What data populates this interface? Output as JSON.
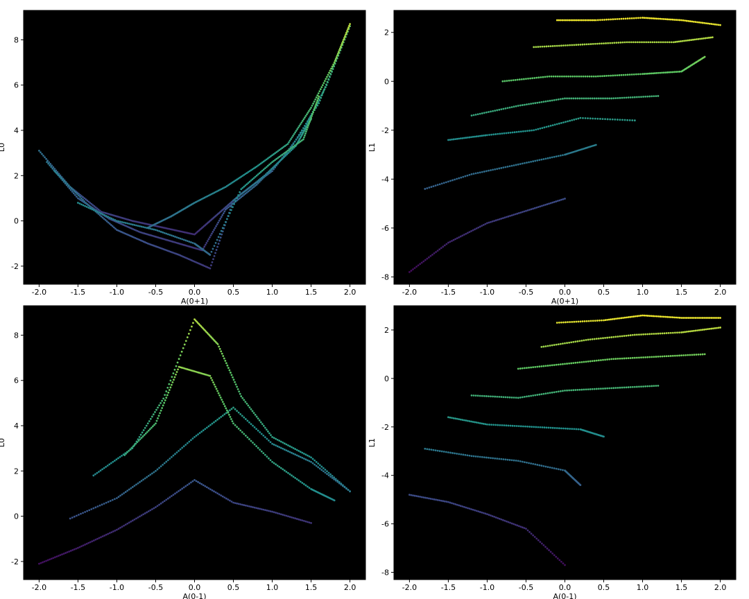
{
  "figure": {
    "background": "#ffffff",
    "plot_background": "#000000",
    "colormap": "viridis",
    "colormap_stops": [
      "#440154",
      "#3b528b",
      "#21918c",
      "#5ec962",
      "#fde725"
    ]
  },
  "chart_data": [
    {
      "type": "scatter",
      "xlabel": "A(0+1)",
      "ylabel": "L0",
      "xlim": [
        -2.2,
        2.2
      ],
      "ylim": [
        -2.8,
        9.3
      ],
      "xticks": [
        -2.0,
        -1.5,
        -1.0,
        -0.5,
        0.0,
        0.5,
        1.0,
        1.5,
        2.0
      ],
      "yticks": [
        -2,
        0,
        2,
        4,
        6,
        8
      ],
      "grid": false,
      "description_of_shape": "many overlapping curves forming a V/parabola with minimum near x=0",
      "series": [
        {
          "values_xy": [
            [
              -2.0,
              3.1
            ],
            [
              -1.6,
              1.5
            ],
            [
              -1.2,
              0.4
            ],
            [
              -0.8,
              0.0
            ],
            [
              -0.4,
              -0.3
            ],
            [
              0.0,
              -0.6
            ],
            [
              0.3,
              0.3
            ],
            [
              0.6,
              1.2
            ],
            [
              1.0,
              2.2
            ],
            [
              1.4,
              4.0
            ],
            [
              1.7,
              6.0
            ],
            [
              2.0,
              8.6
            ]
          ]
        },
        {
          "values_xy": [
            [
              -1.9,
              2.6
            ],
            [
              -1.5,
              1.0
            ],
            [
              -1.1,
              0.1
            ],
            [
              -0.7,
              -0.5
            ],
            [
              -0.3,
              -0.9
            ],
            [
              0.1,
              -1.3
            ],
            [
              0.4,
              0.5
            ],
            [
              0.8,
              1.6
            ],
            [
              1.2,
              3.0
            ],
            [
              1.6,
              5.2
            ],
            [
              1.9,
              7.8
            ]
          ]
        },
        {
          "values_xy": [
            [
              -1.8,
              2.2
            ],
            [
              -1.4,
              0.8
            ],
            [
              -1.0,
              -0.4
            ],
            [
              -0.6,
              -1.0
            ],
            [
              -0.2,
              -1.5
            ],
            [
              0.2,
              -2.1
            ],
            [
              0.5,
              0.9
            ],
            [
              0.9,
              2.0
            ],
            [
              1.3,
              3.3
            ],
            [
              1.5,
              4.5
            ]
          ]
        },
        {
          "values_xy": [
            [
              -0.6,
              -0.3
            ],
            [
              -0.3,
              0.2
            ],
            [
              0.0,
              0.8
            ],
            [
              0.4,
              1.5
            ],
            [
              0.8,
              2.4
            ],
            [
              1.2,
              3.4
            ],
            [
              1.5,
              5.0
            ],
            [
              1.8,
              7.0
            ],
            [
              2.0,
              8.7
            ]
          ]
        },
        {
          "values_xy": [
            [
              -1.5,
              0.8
            ],
            [
              -1.0,
              0.0
            ],
            [
              -0.5,
              -0.4
            ],
            [
              0.0,
              -1.0
            ],
            [
              0.2,
              -1.5
            ],
            [
              0.6,
              1.4
            ],
            [
              1.0,
              2.6
            ],
            [
              1.4,
              3.6
            ],
            [
              1.6,
              5.5
            ]
          ]
        }
      ]
    },
    {
      "type": "scatter",
      "xlabel": "A(0+1)",
      "ylabel": "L1",
      "xlim": [
        -2.2,
        2.2
      ],
      "ylim": [
        -8.3,
        2.9
      ],
      "xticks": [
        -2.0,
        -1.5,
        -1.0,
        -0.5,
        0.0,
        0.5,
        1.0,
        1.5,
        2.0
      ],
      "yticks": [
        -8,
        -6,
        -4,
        -2,
        0,
        2
      ],
      "grid": false,
      "description_of_shape": "sheared grid (lattice) of curves",
      "series": [
        {
          "values_xy": [
            [
              -2.0,
              -7.8
            ],
            [
              -1.5,
              -6.6
            ],
            [
              -1.0,
              -5.8
            ],
            [
              -0.5,
              -5.3
            ],
            [
              0.0,
              -4.8
            ]
          ]
        },
        {
          "values_xy": [
            [
              -1.8,
              -4.4
            ],
            [
              -1.2,
              -3.8
            ],
            [
              -0.6,
              -3.4
            ],
            [
              0.0,
              -3.0
            ],
            [
              0.4,
              -2.6
            ]
          ]
        },
        {
          "values_xy": [
            [
              -1.5,
              -2.4
            ],
            [
              -1.0,
              -2.2
            ],
            [
              -0.4,
              -2.0
            ],
            [
              0.2,
              -1.5
            ],
            [
              0.9,
              -1.6
            ]
          ]
        },
        {
          "values_xy": [
            [
              -1.2,
              -1.4
            ],
            [
              -0.6,
              -1.0
            ],
            [
              0.0,
              -0.7
            ],
            [
              0.6,
              -0.7
            ],
            [
              1.2,
              -0.6
            ]
          ]
        },
        {
          "values_xy": [
            [
              -0.8,
              0.0
            ],
            [
              -0.2,
              0.2
            ],
            [
              0.4,
              0.2
            ],
            [
              1.0,
              0.3
            ],
            [
              1.5,
              0.4
            ],
            [
              1.8,
              1.0
            ]
          ]
        },
        {
          "values_xy": [
            [
              -0.4,
              1.4
            ],
            [
              0.2,
              1.5
            ],
            [
              0.8,
              1.6
            ],
            [
              1.4,
              1.6
            ],
            [
              1.9,
              1.8
            ]
          ]
        },
        {
          "values_xy": [
            [
              -0.1,
              2.5
            ],
            [
              0.4,
              2.5
            ],
            [
              1.0,
              2.6
            ],
            [
              1.5,
              2.5
            ],
            [
              2.0,
              2.3
            ]
          ]
        }
      ]
    },
    {
      "type": "scatter",
      "xlabel": "A(0-1)",
      "ylabel": "L0",
      "xlim": [
        -2.2,
        2.2
      ],
      "ylim": [
        -2.8,
        9.3
      ],
      "xticks": [
        -2.0,
        -1.5,
        -1.0,
        -0.5,
        0.0,
        0.5,
        1.0,
        1.5,
        2.0
      ],
      "yticks": [
        -2,
        0,
        2,
        4,
        6,
        8
      ],
      "grid": false,
      "description_of_shape": "diamond-shaped lattice of crossing curves peaking near x=0, y=8.7",
      "series": [
        {
          "values_xy": [
            [
              -2.0,
              -2.1
            ],
            [
              -1.5,
              -1.4
            ],
            [
              -1.0,
              -0.6
            ],
            [
              -0.5,
              0.4
            ],
            [
              0.0,
              1.6
            ],
            [
              0.5,
              0.6
            ],
            [
              1.0,
              0.2
            ],
            [
              1.5,
              -0.3
            ]
          ]
        },
        {
          "values_xy": [
            [
              -1.6,
              -0.1
            ],
            [
              -1.0,
              0.8
            ],
            [
              -0.5,
              2.0
            ],
            [
              0.0,
              3.5
            ],
            [
              0.5,
              4.8
            ],
            [
              1.0,
              3.2
            ],
            [
              1.5,
              2.4
            ],
            [
              2.0,
              1.1
            ]
          ]
        },
        {
          "values_xy": [
            [
              -1.3,
              1.8
            ],
            [
              -0.8,
              3.0
            ],
            [
              -0.4,
              5.2
            ],
            [
              0.0,
              8.7
            ],
            [
              0.3,
              7.6
            ],
            [
              0.6,
              5.3
            ],
            [
              1.0,
              3.5
            ],
            [
              1.5,
              2.6
            ],
            [
              2.0,
              1.1
            ]
          ]
        },
        {
          "values_xy": [
            [
              -0.9,
              2.7
            ],
            [
              -0.5,
              4.1
            ],
            [
              -0.2,
              6.6
            ],
            [
              0.2,
              6.2
            ],
            [
              0.5,
              4.1
            ],
            [
              1.0,
              2.4
            ],
            [
              1.5,
              1.2
            ],
            [
              1.8,
              0.7
            ]
          ]
        }
      ]
    },
    {
      "type": "scatter",
      "xlabel": "A(0-1)",
      "ylabel": "L1",
      "xlim": [
        -2.2,
        2.2
      ],
      "ylim": [
        -8.3,
        3.0
      ],
      "xticks": [
        -2.0,
        -1.5,
        -1.0,
        -0.5,
        0.0,
        0.5,
        1.0,
        1.5,
        2.0
      ],
      "yticks": [
        -8,
        -6,
        -4,
        -2,
        0,
        2
      ],
      "grid": false,
      "description_of_shape": "sheared grid (lattice) of curves",
      "series": [
        {
          "values_xy": [
            [
              -2.0,
              -4.8
            ],
            [
              -1.5,
              -5.1
            ],
            [
              -1.0,
              -5.6
            ],
            [
              -0.5,
              -6.2
            ],
            [
              0.0,
              -7.7
            ]
          ]
        },
        {
          "values_xy": [
            [
              -1.8,
              -2.9
            ],
            [
              -1.2,
              -3.2
            ],
            [
              -0.6,
              -3.4
            ],
            [
              0.0,
              -3.8
            ],
            [
              0.2,
              -4.4
            ]
          ]
        },
        {
          "values_xy": [
            [
              -1.5,
              -1.6
            ],
            [
              -1.0,
              -1.9
            ],
            [
              -0.4,
              -2.0
            ],
            [
              0.2,
              -2.1
            ],
            [
              0.5,
              -2.4
            ]
          ]
        },
        {
          "values_xy": [
            [
              -1.2,
              -0.7
            ],
            [
              -0.6,
              -0.8
            ],
            [
              0.0,
              -0.5
            ],
            [
              0.6,
              -0.4
            ],
            [
              1.2,
              -0.3
            ]
          ]
        },
        {
          "values_xy": [
            [
              -0.6,
              0.4
            ],
            [
              0.0,
              0.6
            ],
            [
              0.6,
              0.8
            ],
            [
              1.2,
              0.9
            ],
            [
              1.8,
              1.0
            ]
          ]
        },
        {
          "values_xy": [
            [
              -0.3,
              1.3
            ],
            [
              0.3,
              1.6
            ],
            [
              0.9,
              1.8
            ],
            [
              1.5,
              1.9
            ],
            [
              2.0,
              2.1
            ]
          ]
        },
        {
          "values_xy": [
            [
              -0.1,
              2.3
            ],
            [
              0.5,
              2.4
            ],
            [
              1.0,
              2.6
            ],
            [
              1.5,
              2.5
            ],
            [
              2.0,
              2.5
            ]
          ]
        }
      ]
    }
  ]
}
